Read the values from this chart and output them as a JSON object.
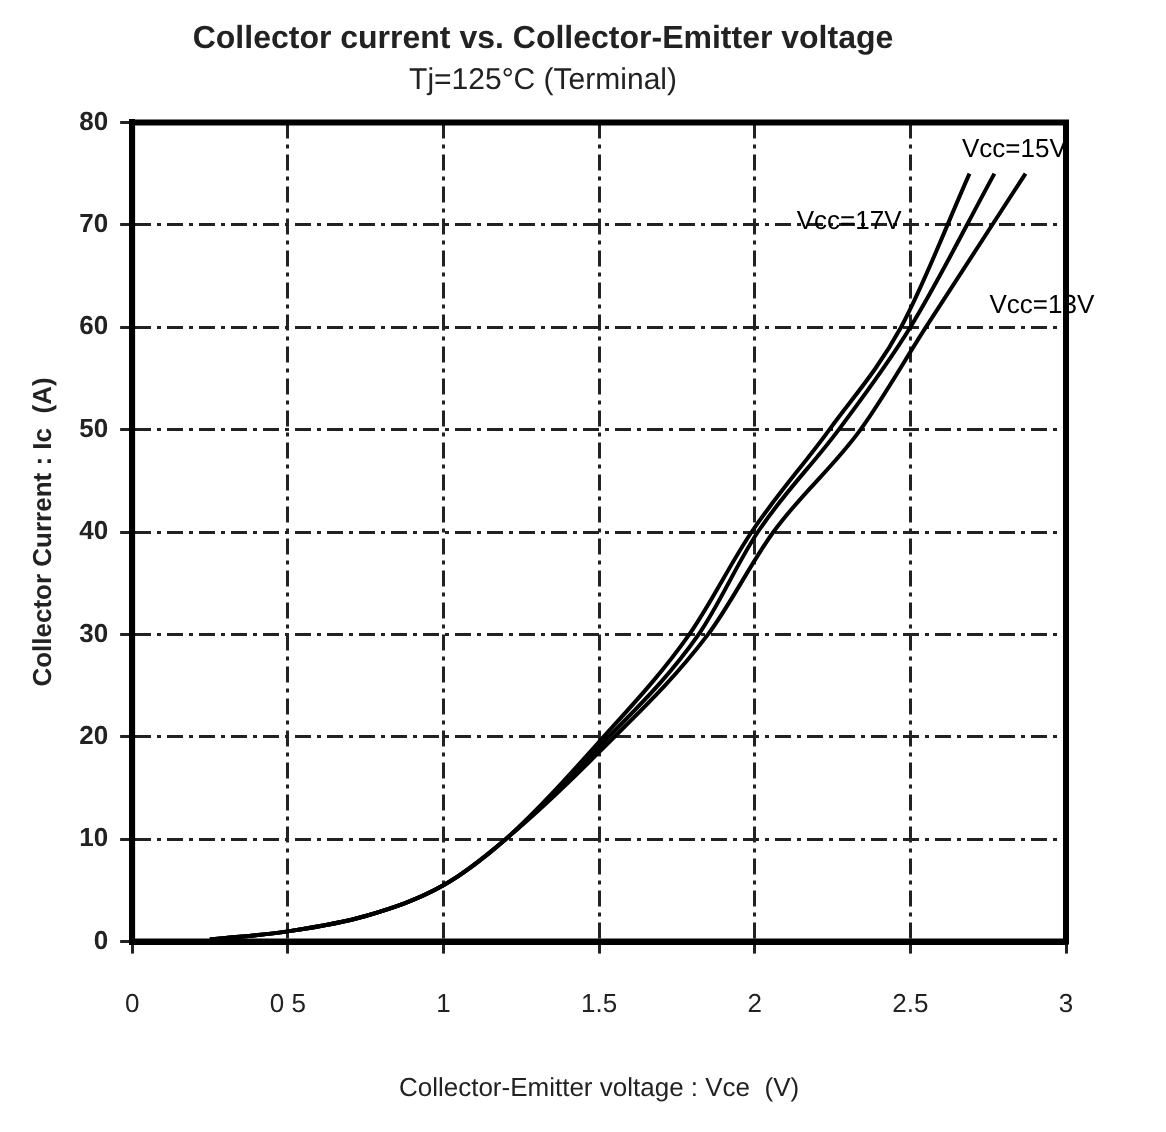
{
  "chart_data": {
    "type": "line",
    "title": "Collector current vs. Collector-Emitter voltage",
    "subtitle": "Tj=125°C (Terminal)",
    "xlabel": "Collector-Emitter voltage : Vce  (V)",
    "ylabel": "Collector Current : Ic  (A)",
    "xlim": [
      0,
      3
    ],
    "xticks": [
      0,
      {
        "value": 0.5,
        "label": "0 5"
      },
      1,
      1.5,
      2,
      2.5,
      3
    ],
    "ylim": [
      0,
      80
    ],
    "yticks": [
      0,
      10,
      20,
      30,
      40,
      50,
      60,
      70,
      80
    ],
    "grid": true,
    "legend": false,
    "marker": "none",
    "line_style": "solid",
    "series": [
      {
        "name": "Vcc=17V",
        "color": "#000000",
        "x": [
          0.25,
          0.5,
          0.75,
          1,
          1.2,
          1.5,
          1.79,
          1.99,
          2.24,
          2.47,
          2.69
        ],
        "values": [
          0.2,
          1,
          2.5,
          5.5,
          10,
          19.5,
          30,
          40,
          50,
          60,
          75
        ]
      },
      {
        "name": "Vcc=15V",
        "color": "#000000",
        "x": [
          0.25,
          0.5,
          0.75,
          1,
          1.2,
          1.5,
          1.82,
          2.01,
          2.27,
          2.5,
          2.77
        ],
        "values": [
          0.2,
          1,
          2.5,
          5.5,
          10,
          19,
          30,
          40,
          50,
          60,
          75
        ]
      },
      {
        "name": "Vcc=13V",
        "color": "#000000",
        "x": [
          0.25,
          0.5,
          0.75,
          1,
          1.2,
          1.5,
          1.85,
          2.06,
          2.34,
          2.55,
          2.87
        ],
        "values": [
          0.2,
          1,
          2.5,
          5.5,
          10,
          18.5,
          30,
          40,
          50,
          60,
          75
        ]
      }
    ]
  }
}
